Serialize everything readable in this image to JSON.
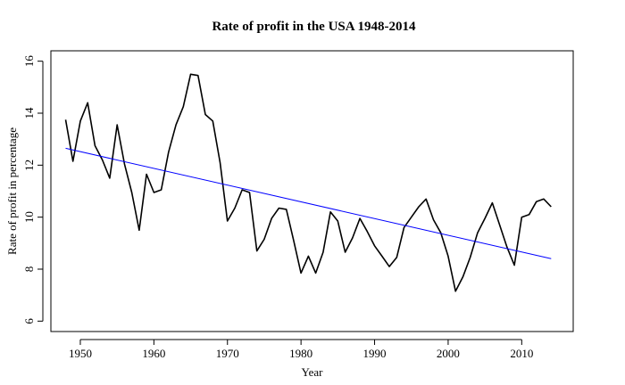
{
  "chart_data": {
    "type": "line",
    "title": "Rate of profit in the USA 1948-2014",
    "xlabel": "Year",
    "ylabel": "Rate of profit in percentage",
    "xlim": [
      1946,
      2017
    ],
    "ylim": [
      5.6,
      16.4
    ],
    "x_ticks": [
      1950,
      1960,
      1970,
      1980,
      1990,
      2000,
      2010
    ],
    "y_ticks": [
      6,
      8,
      10,
      12,
      14,
      16
    ],
    "grid": false,
    "legend": "none",
    "series": [
      {
        "color": "#000000",
        "x": [
          1948,
          1949,
          1950,
          1951,
          1952,
          1953,
          1954,
          1955,
          1956,
          1957,
          1958,
          1959,
          1960,
          1961,
          1962,
          1963,
          1964,
          1965,
          1966,
          1967,
          1968,
          1969,
          1970,
          1971,
          1972,
          1973,
          1974,
          1975,
          1976,
          1977,
          1978,
          1979,
          1980,
          1981,
          1982,
          1983,
          1984,
          1985,
          1986,
          1987,
          1988,
          1989,
          1990,
          1991,
          1992,
          1993,
          1994,
          1995,
          1996,
          1997,
          1998,
          1999,
          2000,
          2001,
          2002,
          2003,
          2004,
          2005,
          2006,
          2007,
          2008,
          2009,
          2010,
          2011,
          2012,
          2013,
          2014
        ],
        "y": [
          13.75,
          12.15,
          13.7,
          14.4,
          12.75,
          12.2,
          11.5,
          13.55,
          12.05,
          10.95,
          9.5,
          11.65,
          10.95,
          11.05,
          12.5,
          13.55,
          14.25,
          15.5,
          15.45,
          13.95,
          13.7,
          12.1,
          9.85,
          10.35,
          11.05,
          10.95,
          8.7,
          9.15,
          9.95,
          10.35,
          10.3,
          9.1,
          7.85,
          8.5,
          7.85,
          8.65,
          10.2,
          9.85,
          8.65,
          9.2,
          9.95,
          9.45,
          8.9,
          8.5,
          8.1,
          8.45,
          9.6,
          10.0,
          10.4,
          10.7,
          9.9,
          9.4,
          8.5,
          7.15,
          7.7,
          8.45,
          9.4,
          9.95,
          10.55,
          9.7,
          8.85,
          8.15,
          10.0,
          10.1,
          10.6,
          10.7,
          10.4
        ]
      },
      {
        "color": "#0000ff",
        "x": [
          1948,
          2014
        ],
        "y": [
          12.65,
          8.4
        ]
      }
    ]
  }
}
